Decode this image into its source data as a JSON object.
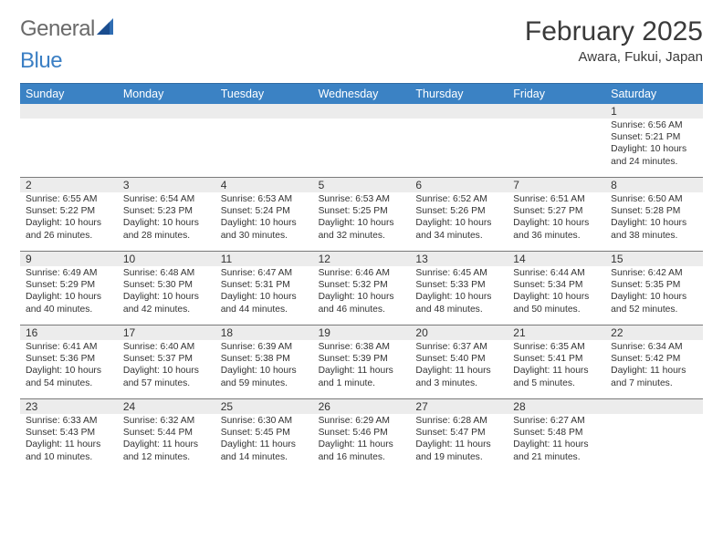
{
  "brand": {
    "part1": "General",
    "part2": "Blue"
  },
  "title": "February 2025",
  "location": "Awara, Fukui, Japan",
  "header_bg": "#3b82c4",
  "day_headers": [
    "Sunday",
    "Monday",
    "Tuesday",
    "Wednesday",
    "Thursday",
    "Friday",
    "Saturday"
  ],
  "weeks": [
    [
      {
        "n": "",
        "sunrise": "",
        "sunset": "",
        "daylight": ""
      },
      {
        "n": "",
        "sunrise": "",
        "sunset": "",
        "daylight": ""
      },
      {
        "n": "",
        "sunrise": "",
        "sunset": "",
        "daylight": ""
      },
      {
        "n": "",
        "sunrise": "",
        "sunset": "",
        "daylight": ""
      },
      {
        "n": "",
        "sunrise": "",
        "sunset": "",
        "daylight": ""
      },
      {
        "n": "",
        "sunrise": "",
        "sunset": "",
        "daylight": ""
      },
      {
        "n": "1",
        "sunrise": "Sunrise: 6:56 AM",
        "sunset": "Sunset: 5:21 PM",
        "daylight": "Daylight: 10 hours and 24 minutes."
      }
    ],
    [
      {
        "n": "2",
        "sunrise": "Sunrise: 6:55 AM",
        "sunset": "Sunset: 5:22 PM",
        "daylight": "Daylight: 10 hours and 26 minutes."
      },
      {
        "n": "3",
        "sunrise": "Sunrise: 6:54 AM",
        "sunset": "Sunset: 5:23 PM",
        "daylight": "Daylight: 10 hours and 28 minutes."
      },
      {
        "n": "4",
        "sunrise": "Sunrise: 6:53 AM",
        "sunset": "Sunset: 5:24 PM",
        "daylight": "Daylight: 10 hours and 30 minutes."
      },
      {
        "n": "5",
        "sunrise": "Sunrise: 6:53 AM",
        "sunset": "Sunset: 5:25 PM",
        "daylight": "Daylight: 10 hours and 32 minutes."
      },
      {
        "n": "6",
        "sunrise": "Sunrise: 6:52 AM",
        "sunset": "Sunset: 5:26 PM",
        "daylight": "Daylight: 10 hours and 34 minutes."
      },
      {
        "n": "7",
        "sunrise": "Sunrise: 6:51 AM",
        "sunset": "Sunset: 5:27 PM",
        "daylight": "Daylight: 10 hours and 36 minutes."
      },
      {
        "n": "8",
        "sunrise": "Sunrise: 6:50 AM",
        "sunset": "Sunset: 5:28 PM",
        "daylight": "Daylight: 10 hours and 38 minutes."
      }
    ],
    [
      {
        "n": "9",
        "sunrise": "Sunrise: 6:49 AM",
        "sunset": "Sunset: 5:29 PM",
        "daylight": "Daylight: 10 hours and 40 minutes."
      },
      {
        "n": "10",
        "sunrise": "Sunrise: 6:48 AM",
        "sunset": "Sunset: 5:30 PM",
        "daylight": "Daylight: 10 hours and 42 minutes."
      },
      {
        "n": "11",
        "sunrise": "Sunrise: 6:47 AM",
        "sunset": "Sunset: 5:31 PM",
        "daylight": "Daylight: 10 hours and 44 minutes."
      },
      {
        "n": "12",
        "sunrise": "Sunrise: 6:46 AM",
        "sunset": "Sunset: 5:32 PM",
        "daylight": "Daylight: 10 hours and 46 minutes."
      },
      {
        "n": "13",
        "sunrise": "Sunrise: 6:45 AM",
        "sunset": "Sunset: 5:33 PM",
        "daylight": "Daylight: 10 hours and 48 minutes."
      },
      {
        "n": "14",
        "sunrise": "Sunrise: 6:44 AM",
        "sunset": "Sunset: 5:34 PM",
        "daylight": "Daylight: 10 hours and 50 minutes."
      },
      {
        "n": "15",
        "sunrise": "Sunrise: 6:42 AM",
        "sunset": "Sunset: 5:35 PM",
        "daylight": "Daylight: 10 hours and 52 minutes."
      }
    ],
    [
      {
        "n": "16",
        "sunrise": "Sunrise: 6:41 AM",
        "sunset": "Sunset: 5:36 PM",
        "daylight": "Daylight: 10 hours and 54 minutes."
      },
      {
        "n": "17",
        "sunrise": "Sunrise: 6:40 AM",
        "sunset": "Sunset: 5:37 PM",
        "daylight": "Daylight: 10 hours and 57 minutes."
      },
      {
        "n": "18",
        "sunrise": "Sunrise: 6:39 AM",
        "sunset": "Sunset: 5:38 PM",
        "daylight": "Daylight: 10 hours and 59 minutes."
      },
      {
        "n": "19",
        "sunrise": "Sunrise: 6:38 AM",
        "sunset": "Sunset: 5:39 PM",
        "daylight": "Daylight: 11 hours and 1 minute."
      },
      {
        "n": "20",
        "sunrise": "Sunrise: 6:37 AM",
        "sunset": "Sunset: 5:40 PM",
        "daylight": "Daylight: 11 hours and 3 minutes."
      },
      {
        "n": "21",
        "sunrise": "Sunrise: 6:35 AM",
        "sunset": "Sunset: 5:41 PM",
        "daylight": "Daylight: 11 hours and 5 minutes."
      },
      {
        "n": "22",
        "sunrise": "Sunrise: 6:34 AM",
        "sunset": "Sunset: 5:42 PM",
        "daylight": "Daylight: 11 hours and 7 minutes."
      }
    ],
    [
      {
        "n": "23",
        "sunrise": "Sunrise: 6:33 AM",
        "sunset": "Sunset: 5:43 PM",
        "daylight": "Daylight: 11 hours and 10 minutes."
      },
      {
        "n": "24",
        "sunrise": "Sunrise: 6:32 AM",
        "sunset": "Sunset: 5:44 PM",
        "daylight": "Daylight: 11 hours and 12 minutes."
      },
      {
        "n": "25",
        "sunrise": "Sunrise: 6:30 AM",
        "sunset": "Sunset: 5:45 PM",
        "daylight": "Daylight: 11 hours and 14 minutes."
      },
      {
        "n": "26",
        "sunrise": "Sunrise: 6:29 AM",
        "sunset": "Sunset: 5:46 PM",
        "daylight": "Daylight: 11 hours and 16 minutes."
      },
      {
        "n": "27",
        "sunrise": "Sunrise: 6:28 AM",
        "sunset": "Sunset: 5:47 PM",
        "daylight": "Daylight: 11 hours and 19 minutes."
      },
      {
        "n": "28",
        "sunrise": "Sunrise: 6:27 AM",
        "sunset": "Sunset: 5:48 PM",
        "daylight": "Daylight: 11 hours and 21 minutes."
      },
      {
        "n": "",
        "sunrise": "",
        "sunset": "",
        "daylight": ""
      }
    ]
  ]
}
